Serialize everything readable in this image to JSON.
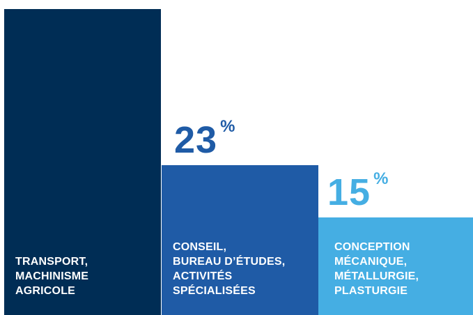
{
  "chart_data": {
    "type": "bar",
    "categories": [
      "TRANSPORT,\nMACHINISME\nAGRICOLE",
      "CONSEIL,\nBUREAU D’ÉTUDES,\nACTIVITÉS\nSPÉCIALISÉES",
      "CONCEPTION\nMÉCANIQUE,\nMÉTALLURGIE,\nPLASTURGIE"
    ],
    "values": [
      47,
      23,
      15
    ],
    "data_labels": [
      {
        "number": "",
        "unit": ""
      },
      {
        "number": "23",
        "unit": "%"
      },
      {
        "number": "15",
        "unit": "%"
      }
    ],
    "ylim": [
      0,
      47
    ],
    "title": "",
    "xlabel": "",
    "ylabel": "",
    "grid": false,
    "legend": "none",
    "colors": [
      "#002D55",
      "#1F5BA6",
      "#45AEE3"
    ],
    "value_label_colors": [
      "#002D55",
      "#1F5BA6",
      "#45AEE3"
    ]
  }
}
